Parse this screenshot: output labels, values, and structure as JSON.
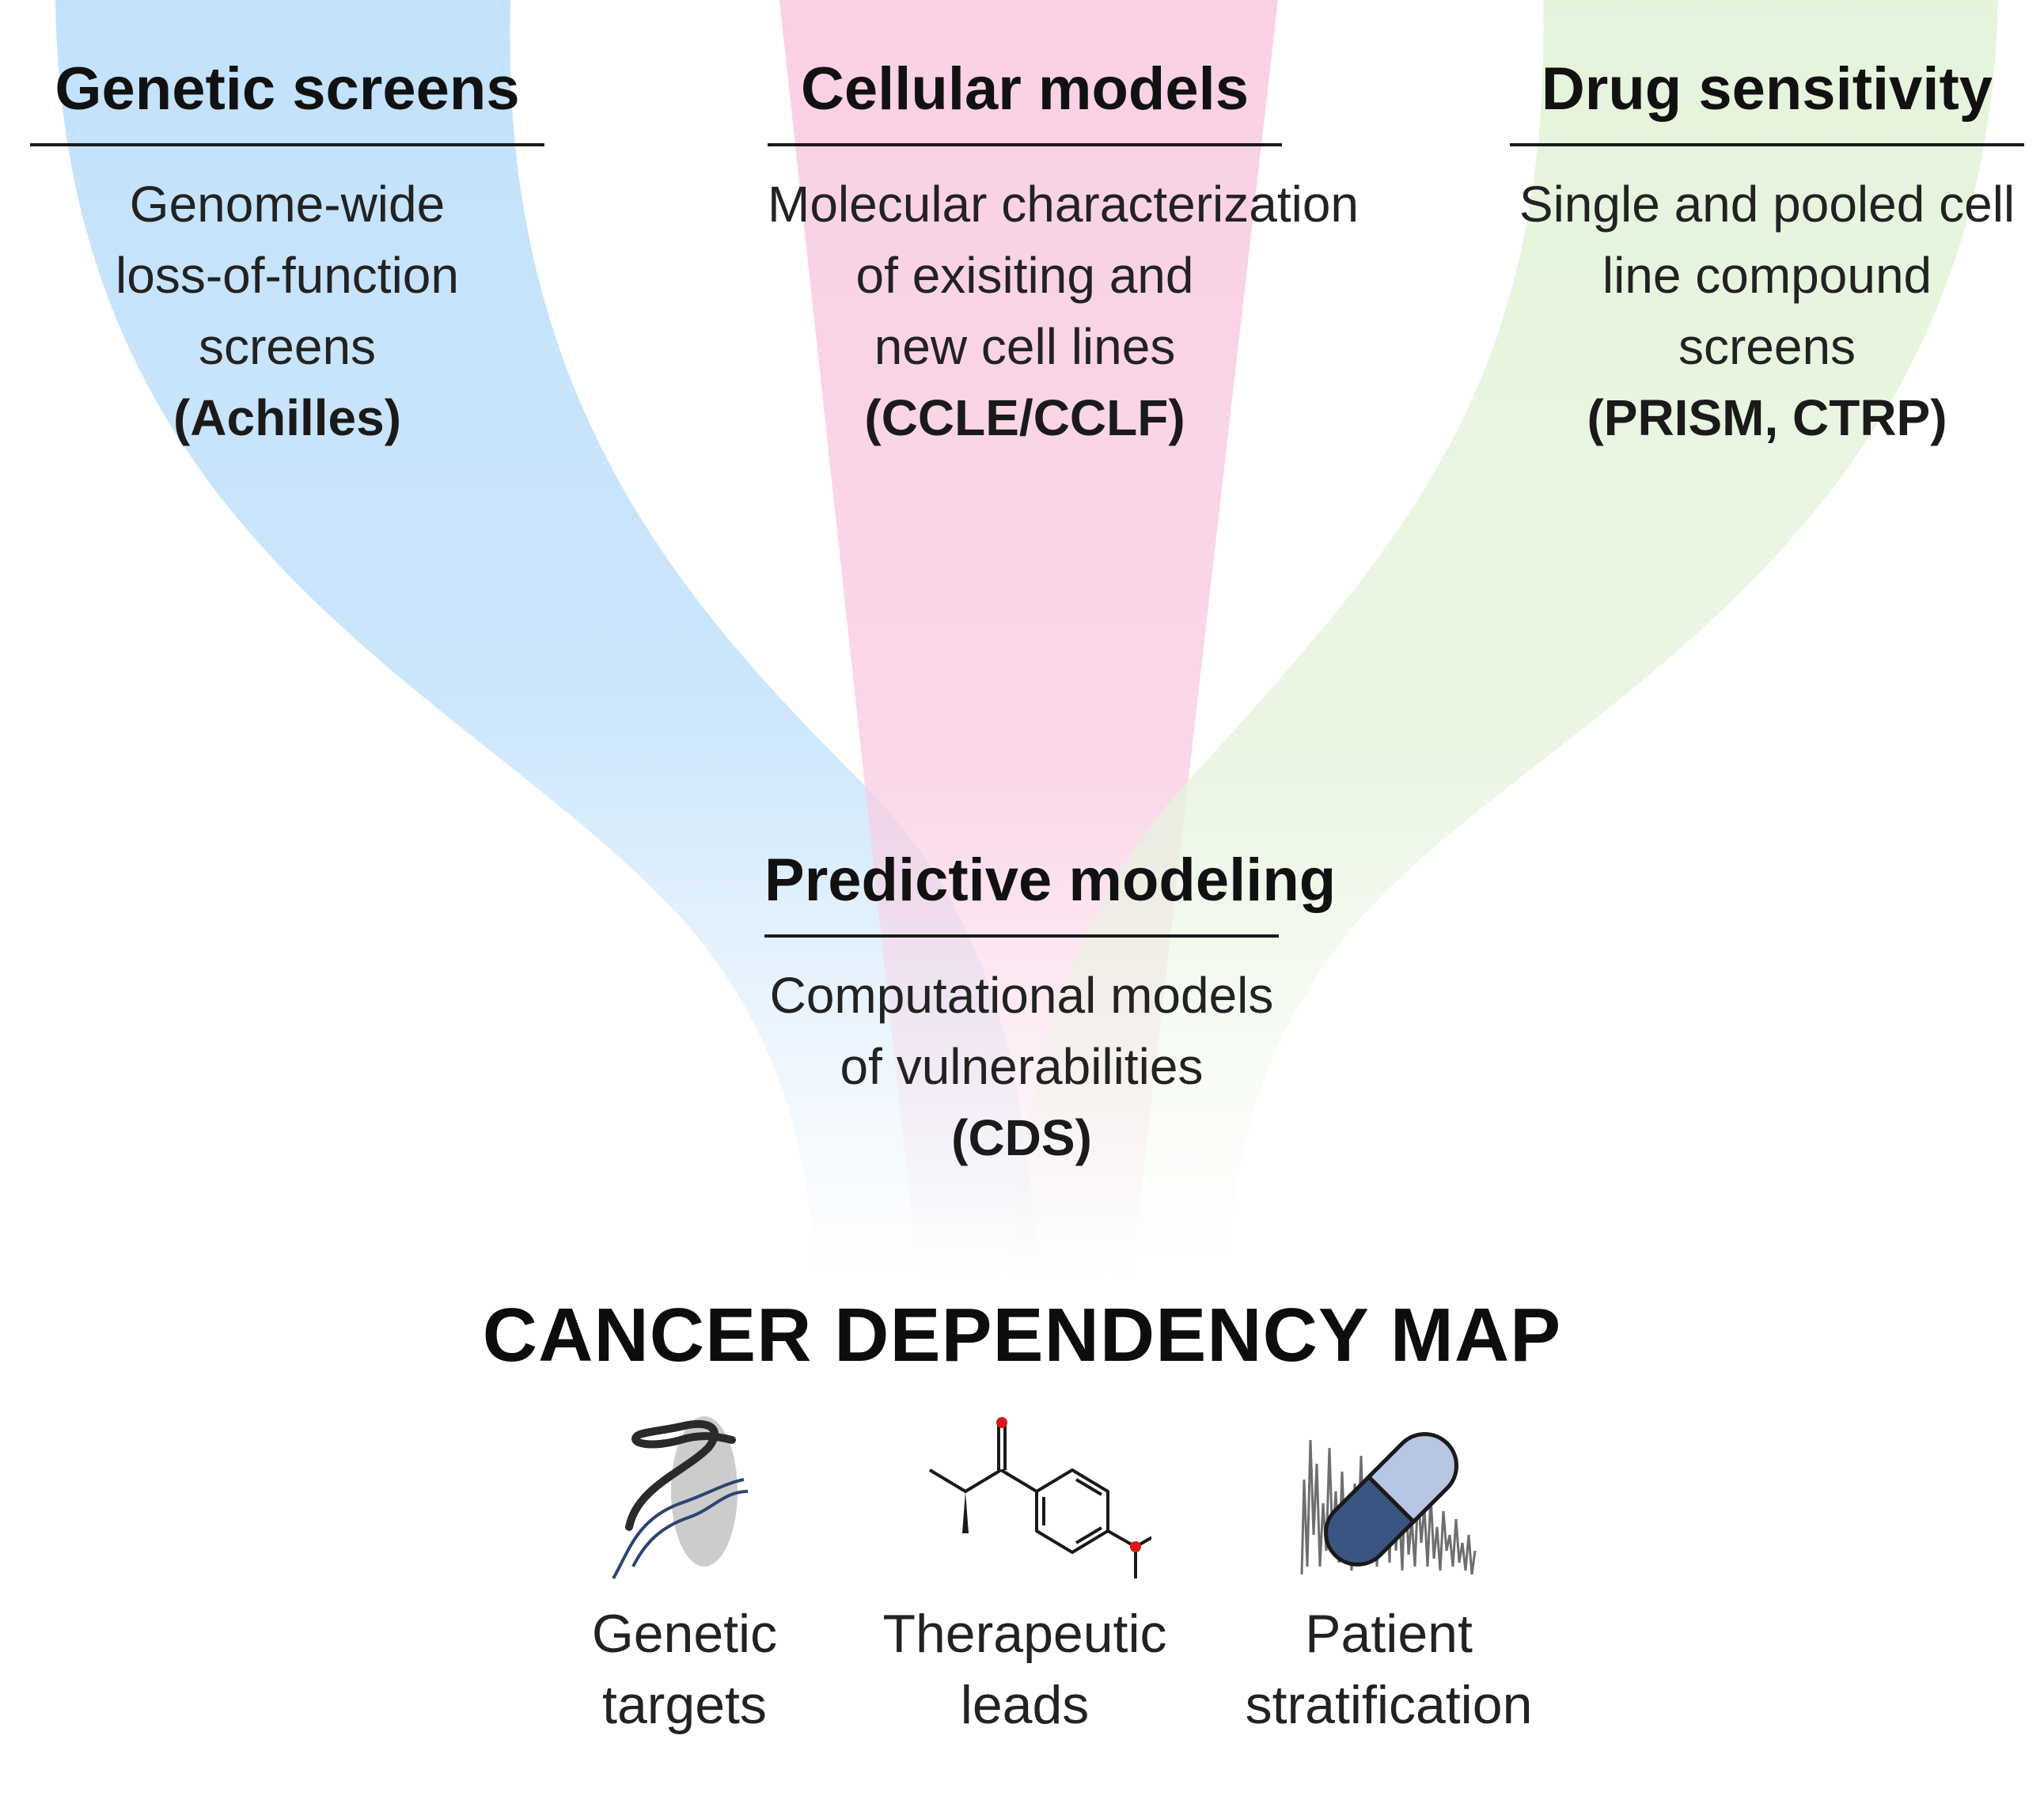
{
  "inputs": [
    {
      "heading": "Genetic screens",
      "lines": [
        "Genome-wide",
        "loss-of-function",
        "screens"
      ],
      "source": "(Achilles)",
      "color": "#c0e0fb"
    },
    {
      "heading": "Cellular models",
      "lines": [
        "Molecular characterization",
        "of exisiting and",
        "new cell lines"
      ],
      "source": "(CCLE/CCLF)",
      "color": "#f9c9e1"
    },
    {
      "heading": "Drug sensitivity",
      "lines": [
        "Single and pooled cell",
        "line compound",
        "screens"
      ],
      "source": "(PRISM, CTRP)",
      "color": "#e2f3d8"
    }
  ],
  "modeling": {
    "heading": "Predictive modeling",
    "lines": [
      "Computational models",
      "of vulnerabilities"
    ],
    "source": "(CDS)"
  },
  "map_title": "CANCER DEPENDENCY MAP",
  "outputs": [
    {
      "icon": "protein-structure-icon",
      "lines": [
        "Genetic",
        "targets"
      ]
    },
    {
      "icon": "molecule-icon",
      "lines": [
        "Therapeutic",
        "leads"
      ]
    },
    {
      "icon": "pill-signal-icon",
      "lines": [
        "Patient",
        "stratification"
      ]
    }
  ],
  "colors": {
    "accent_red": "#d6191b",
    "pill_blue": "#3a5582",
    "pill_light": "#b7c6e2",
    "text": "#1a1a1a"
  }
}
